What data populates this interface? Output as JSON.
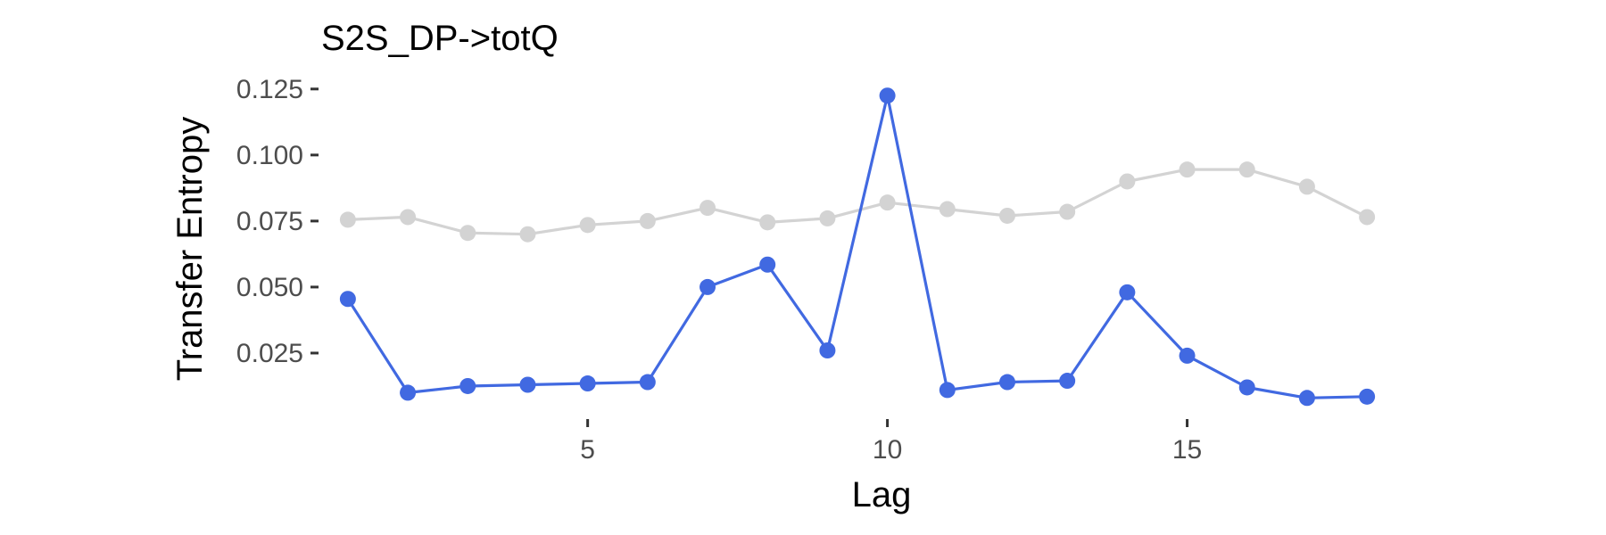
{
  "chart_data": {
    "type": "line",
    "title": "S2S_DP->totQ",
    "xlabel": "Lag",
    "ylabel": "Transfer Entropy",
    "xlim": [
      0.6,
      18.4
    ],
    "ylim": [
      0.0,
      0.13
    ],
    "xticks": [
      5,
      10,
      15
    ],
    "yticks": [
      0.025,
      0.05,
      0.075,
      0.1,
      0.125
    ],
    "ytick_labels": [
      "0.025",
      "0.050",
      "0.075",
      "0.100",
      "0.125"
    ],
    "grid": false,
    "legend": "none",
    "x": [
      1,
      2,
      3,
      4,
      5,
      6,
      7,
      8,
      9,
      10,
      11,
      12,
      13,
      14,
      15,
      16,
      17,
      18
    ],
    "series": [
      {
        "color": "#d3d3d3",
        "values": [
          0.0755,
          0.0765,
          0.0705,
          0.07,
          0.0735,
          0.075,
          0.08,
          0.0745,
          0.076,
          0.082,
          0.0795,
          0.077,
          0.0785,
          0.09,
          0.0945,
          0.0945,
          0.088,
          0.0765
        ]
      },
      {
        "color": "#4169e1",
        "values": [
          0.0455,
          0.01,
          0.0125,
          0.013,
          0.0135,
          0.014,
          0.05,
          0.0585,
          0.026,
          0.1225,
          0.011,
          0.014,
          0.0145,
          0.048,
          0.024,
          0.012,
          0.008,
          0.0085
        ]
      }
    ]
  }
}
